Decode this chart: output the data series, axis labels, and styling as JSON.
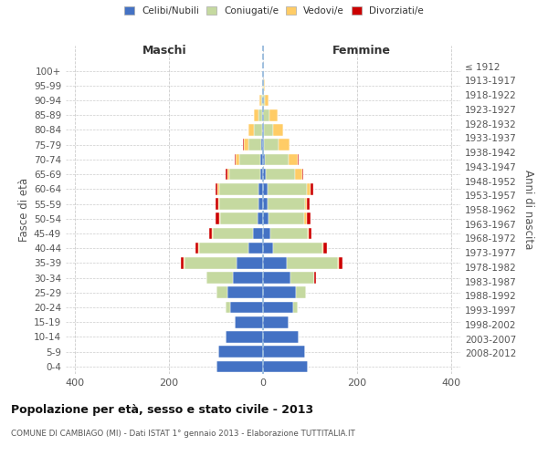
{
  "age_groups": [
    "0-4",
    "5-9",
    "10-14",
    "15-19",
    "20-24",
    "25-29",
    "30-34",
    "35-39",
    "40-44",
    "45-49",
    "50-54",
    "55-59",
    "60-64",
    "65-69",
    "70-74",
    "75-79",
    "80-84",
    "85-89",
    "90-94",
    "95-99",
    "100+"
  ],
  "birth_years": [
    "2008-2012",
    "2003-2007",
    "1998-2002",
    "1993-1997",
    "1988-1992",
    "1983-1987",
    "1978-1982",
    "1973-1977",
    "1968-1972",
    "1963-1967",
    "1958-1962",
    "1953-1957",
    "1948-1952",
    "1943-1947",
    "1938-1942",
    "1933-1937",
    "1928-1932",
    "1923-1927",
    "1918-1922",
    "1913-1917",
    "≤ 1912"
  ],
  "colors": {
    "celibi": "#4472C4",
    "coniugati": "#C5D9A0",
    "vedovi": "#FFCC66",
    "divorziati": "#CC0000"
  },
  "maschi": {
    "celibi": [
      100,
      95,
      80,
      60,
      70,
      75,
      65,
      57,
      32,
      22,
      11,
      9,
      9,
      6,
      5,
      3,
      2,
      1,
      0,
      0,
      0
    ],
    "coniugati": [
      0,
      0,
      0,
      0,
      10,
      25,
      55,
      110,
      105,
      85,
      80,
      85,
      85,
      65,
      45,
      28,
      18,
      8,
      3,
      0,
      0
    ],
    "vedovi": [
      0,
      0,
      0,
      0,
      0,
      0,
      0,
      2,
      2,
      1,
      2,
      2,
      3,
      5,
      8,
      10,
      12,
      10,
      5,
      2,
      0
    ],
    "divorziati": [
      0,
      0,
      0,
      0,
      0,
      0,
      0,
      6,
      5,
      6,
      8,
      5,
      5,
      3,
      3,
      2,
      0,
      0,
      0,
      0,
      0
    ]
  },
  "femmine": {
    "celibi": [
      95,
      90,
      75,
      55,
      65,
      70,
      58,
      50,
      22,
      16,
      11,
      9,
      9,
      6,
      3,
      2,
      1,
      0,
      0,
      0,
      0
    ],
    "coniugati": [
      0,
      0,
      0,
      0,
      8,
      22,
      50,
      110,
      105,
      80,
      77,
      80,
      84,
      63,
      52,
      32,
      20,
      14,
      4,
      1,
      0
    ],
    "vedovi": [
      0,
      0,
      0,
      0,
      0,
      0,
      0,
      2,
      2,
      2,
      5,
      5,
      8,
      15,
      18,
      22,
      22,
      18,
      8,
      3,
      0
    ],
    "divorziati": [
      0,
      0,
      0,
      0,
      0,
      0,
      5,
      8,
      8,
      6,
      8,
      5,
      5,
      2,
      2,
      0,
      0,
      0,
      0,
      0,
      0
    ]
  },
  "xlim": 420,
  "title": "Popolazione per età, sesso e stato civile - 2013",
  "subtitle": "COMUNE DI CAMBIAGO (MI) - Dati ISTAT 1° gennaio 2013 - Elaborazione TUTTITALIA.IT",
  "ylabel_left": "Fasce di età",
  "ylabel_right": "Anni di nascita",
  "xlabel_maschi": "Maschi",
  "xlabel_femmine": "Femmine",
  "legend_labels": [
    "Celibi/Nubili",
    "Coniugati/e",
    "Vedovi/e",
    "Divorziati/e"
  ],
  "background_color": "#ffffff",
  "grid_color": "#cccccc"
}
